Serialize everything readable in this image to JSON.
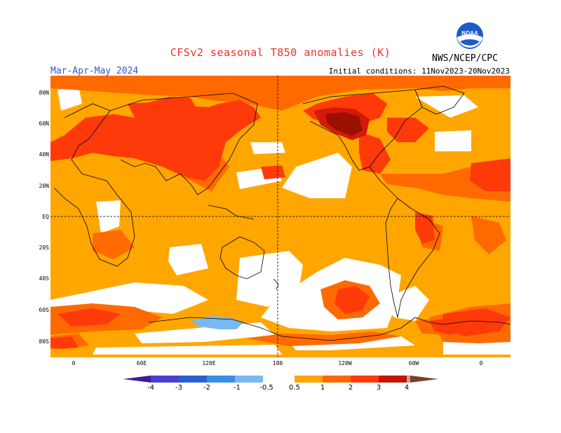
{
  "header": {
    "title": "CFSv2 seasonal T850 anomalies (K)",
    "season": "Mar-Apr-May 2024",
    "initial_conditions": "Initial conditions: 11Nov2023-20Nov2023",
    "agency": "NWS/NCEP/CPC",
    "logo_text": "NOAA"
  },
  "map": {
    "lat_labels": [
      "80N",
      "60N",
      "40N",
      "20N",
      "EQ",
      "20S",
      "40S",
      "60S",
      "80S"
    ],
    "lon_labels": [
      "0",
      "60E",
      "120E",
      "180",
      "120W",
      "60W",
      "0"
    ],
    "colors": {
      "white": "#ffffff",
      "light_orange": "#ffa600",
      "orange": "#ff6a00",
      "red_orange": "#ff3a0a",
      "red": "#d41a0a",
      "dark_red": "#9c1000",
      "light_blue": "#7ab8f5",
      "ocean_background": "#ffa600"
    }
  },
  "colorbar": {
    "labels": [
      "-4",
      "-3",
      "-2",
      "-1",
      "-0.5",
      "0.5",
      "1",
      "2",
      "3",
      "4"
    ],
    "colors": [
      "#3a1c9a",
      "#4b3fcf",
      "#2a5fcf",
      "#3a8fe8",
      "#7ab8f5",
      "#ffffff",
      "#ffa600",
      "#ff6a00",
      "#ff3a0a",
      "#c21400",
      "#c8a091",
      "#7c3f28"
    ]
  }
}
